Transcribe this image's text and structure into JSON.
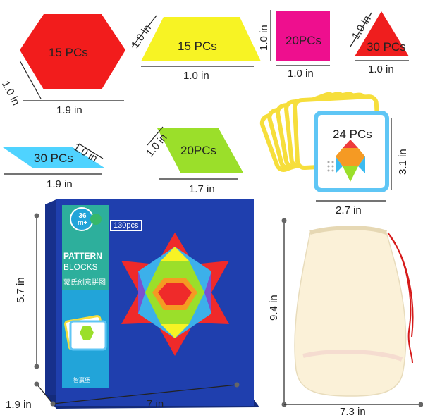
{
  "shapes": {
    "hexagon": {
      "count": "15 PCs",
      "side": "1.0 in",
      "width": "1.9 in",
      "color": "#f21c1c"
    },
    "trapezoid": {
      "count": "15 PCs",
      "side": "1.0 in",
      "width": "1.0 in",
      "color": "#f7f324"
    },
    "square": {
      "count": "20PCs",
      "side": "1.0 in",
      "width": "1.0 in",
      "color": "#ee0f8e"
    },
    "triangle": {
      "count": "30 PCs",
      "side": "1.0 in",
      "width": "1.0 in",
      "color": "#ef1e1e"
    },
    "thin_rhombus": {
      "count": "30 PCs",
      "side": "1.0 in",
      "width": "1.9 in",
      "color": "#4fd3ff"
    },
    "rhombus": {
      "count": "20PCs",
      "side": "1.0 in",
      "width": "1.7 in",
      "color": "#9bdf2a"
    }
  },
  "cards": {
    "count": "24 PCs",
    "height": "3.1 in",
    "width": "2.7 in"
  },
  "box": {
    "age": "36 m+",
    "pcs": "130pcs",
    "title_line1": "PATTERN",
    "title_line2": "BLOCKS",
    "chinese": "蒙氏创意拼图",
    "brand": "智赢堡",
    "height": "5.7 in",
    "depth": "1.9 in",
    "width": "7 in"
  },
  "bag": {
    "height": "9.4 in",
    "width": "7.3 in"
  },
  "colors": {
    "box_blue": "#1f3fae",
    "bag_cream": "#fbf1d8",
    "string_red": "#d61a1a"
  }
}
